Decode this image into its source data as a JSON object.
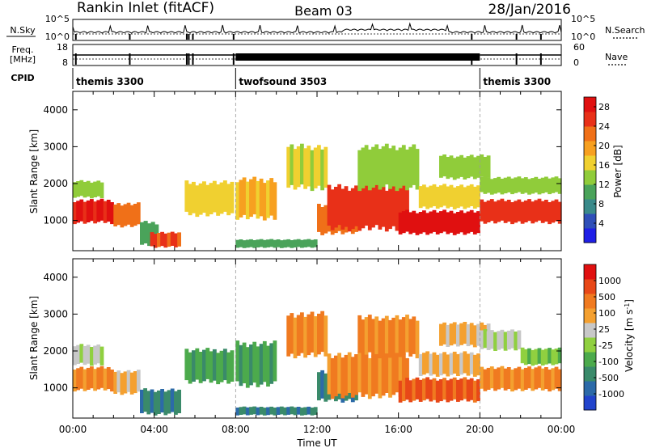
{
  "header": {
    "station": "Rankin Inlet (fitACF)",
    "beam": "Beam 03",
    "date": "28/Jan/2016"
  },
  "noise_panel": {
    "left_label": "N.Sky",
    "right_label": "N.Search",
    "left_ticks": [
      "10^5",
      "10^0"
    ],
    "right_ticks": [
      "10^5",
      "10^0"
    ]
  },
  "freq_panel": {
    "left_label_1": "Freq.",
    "left_label_2": "[MHz]",
    "right_label": "Nave",
    "left_ticks": [
      "18",
      "8"
    ],
    "right_ticks": [
      "60",
      "0"
    ]
  },
  "cpid": {
    "label": "CPID",
    "modes": [
      {
        "name": "themis 3300",
        "start_hour": 0,
        "end_hour": 8
      },
      {
        "name": "twofsound 3503",
        "start_hour": 8,
        "end_hour": 20
      },
      {
        "name": "themis 3300",
        "start_hour": 20,
        "end_hour": 24
      }
    ]
  },
  "chart_data": [
    {
      "type": "heatmap",
      "title": "",
      "parameter": "Power",
      "xlabel": "Time UT",
      "ylabel": "Slant Range [km]",
      "xlim": [
        0,
        24
      ],
      "ylim": [
        180,
        4500
      ],
      "x_tick_labels": [
        "00:00",
        "04:00",
        "08:00",
        "12:00",
        "16:00",
        "20:00",
        "00:00"
      ],
      "y_tick_labels": [
        "1000",
        "2000",
        "3000",
        "4000"
      ],
      "colorbar": {
        "label": "Power [dB]",
        "ticks": [
          "4",
          "8",
          "12",
          "16",
          "20",
          "24",
          "28"
        ],
        "range": [
          0,
          30
        ],
        "colors": [
          "#1f1fe6",
          "#2f4fb8",
          "#3a8a8a",
          "#4aa35a",
          "#90cc3a",
          "#f0d030",
          "#f7a020",
          "#f07018",
          "#e83018",
          "#e01010"
        ]
      },
      "regions": [
        {
          "t0": 0.0,
          "t1": 2.0,
          "r0": 900,
          "r1": 1600,
          "level": 27
        },
        {
          "t0": 0.0,
          "t1": 1.5,
          "r0": 1600,
          "r1": 2100,
          "level": 14
        },
        {
          "t0": 2.0,
          "t1": 3.3,
          "r0": 800,
          "r1": 1500,
          "level": 22
        },
        {
          "t0": 3.3,
          "t1": 4.2,
          "r0": 280,
          "r1": 1000,
          "level": 10
        },
        {
          "t0": 3.8,
          "t1": 5.3,
          "r0": 250,
          "r1": 700,
          "level": 24
        },
        {
          "t0": 5.5,
          "t1": 7.9,
          "r0": 1100,
          "r1": 2100,
          "level": 17
        },
        {
          "t0": 8.0,
          "t1": 10.0,
          "r0": 1000,
          "r1": 2200,
          "level": 18
        },
        {
          "t0": 8.0,
          "t1": 12.0,
          "r0": 250,
          "r1": 500,
          "level": 10
        },
        {
          "t0": 10.5,
          "t1": 12.5,
          "r0": 1800,
          "r1": 3100,
          "level": 15
        },
        {
          "t0": 12.0,
          "t1": 14.0,
          "r0": 600,
          "r1": 1500,
          "level": 22
        },
        {
          "t0": 12.5,
          "t1": 16.5,
          "r0": 700,
          "r1": 2000,
          "level": 25
        },
        {
          "t0": 14.0,
          "t1": 17.0,
          "r0": 1800,
          "r1": 3100,
          "level": 13
        },
        {
          "t0": 16.0,
          "t1": 20.0,
          "r0": 600,
          "r1": 1300,
          "level": 29
        },
        {
          "t0": 17.0,
          "t1": 20.0,
          "r0": 1300,
          "r1": 2000,
          "level": 16
        },
        {
          "t0": 18.0,
          "t1": 20.5,
          "r0": 2100,
          "r1": 2800,
          "level": 14
        },
        {
          "t0": 20.0,
          "t1": 24.0,
          "r0": 900,
          "r1": 1600,
          "level": 26
        },
        {
          "t0": 20.0,
          "t1": 24.0,
          "r0": 1700,
          "r1": 2200,
          "level": 13
        }
      ]
    },
    {
      "type": "heatmap",
      "title": "",
      "parameter": "Velocity",
      "xlabel": "Time UT",
      "ylabel": "Slant Range [km]",
      "xlim": [
        0,
        24
      ],
      "ylim": [
        180,
        4500
      ],
      "x_tick_labels": [
        "00:00",
        "04:00",
        "08:00",
        "12:00",
        "16:00",
        "20:00",
        "00:00"
      ],
      "y_tick_labels": [
        "1000",
        "2000",
        "3000",
        "4000"
      ],
      "colorbar": {
        "label": "Velocity [m s^-1]",
        "ticks": [
          "1000",
          "500",
          "100",
          "25",
          "-25",
          "-100",
          "-500",
          "-1000"
        ],
        "colors": [
          "#2244cc",
          "#2c6aa8",
          "#3a8a6a",
          "#4caa4c",
          "#90d040",
          "#c8c8c8",
          "#f4a030",
          "#f07a20",
          "#e84818",
          "#e01010"
        ]
      },
      "regions": [
        {
          "t0": 0.0,
          "t1": 2.0,
          "r0": 900,
          "r1": 1600,
          "level": 7
        },
        {
          "t0": 0.0,
          "t1": 1.5,
          "r0": 1600,
          "r1": 2200,
          "level": 5
        },
        {
          "t0": 2.0,
          "t1": 3.3,
          "r0": 800,
          "r1": 1500,
          "level": 6
        },
        {
          "t0": 3.3,
          "t1": 5.3,
          "r0": 250,
          "r1": 1000,
          "level": 2
        },
        {
          "t0": 5.5,
          "t1": 7.9,
          "r0": 1100,
          "r1": 2100,
          "level": 3
        },
        {
          "t0": 8.0,
          "t1": 10.0,
          "r0": 1000,
          "r1": 2300,
          "level": 3
        },
        {
          "t0": 8.0,
          "t1": 12.0,
          "r0": 250,
          "r1": 500,
          "level": 2
        },
        {
          "t0": 10.5,
          "t1": 12.5,
          "r0": 1800,
          "r1": 3100,
          "level": 7
        },
        {
          "t0": 12.0,
          "t1": 14.0,
          "r0": 600,
          "r1": 1500,
          "level": 2
        },
        {
          "t0": 12.5,
          "t1": 16.5,
          "r0": 700,
          "r1": 2000,
          "level": 7
        },
        {
          "t0": 14.0,
          "t1": 17.0,
          "r0": 1800,
          "r1": 3000,
          "level": 7
        },
        {
          "t0": 16.0,
          "t1": 20.0,
          "r0": 600,
          "r1": 1300,
          "level": 8
        },
        {
          "t0": 17.0,
          "t1": 20.0,
          "r0": 1300,
          "r1": 2000,
          "level": 6
        },
        {
          "t0": 18.0,
          "t1": 20.5,
          "r0": 2100,
          "r1": 2800,
          "level": 6
        },
        {
          "t0": 20.0,
          "t1": 22.0,
          "r0": 2000,
          "r1": 2600,
          "level": 5
        },
        {
          "t0": 20.0,
          "t1": 24.0,
          "r0": 900,
          "r1": 1600,
          "level": 7
        },
        {
          "t0": 22.0,
          "t1": 24.0,
          "r0": 1600,
          "r1": 2100,
          "level": 4
        }
      ]
    }
  ]
}
